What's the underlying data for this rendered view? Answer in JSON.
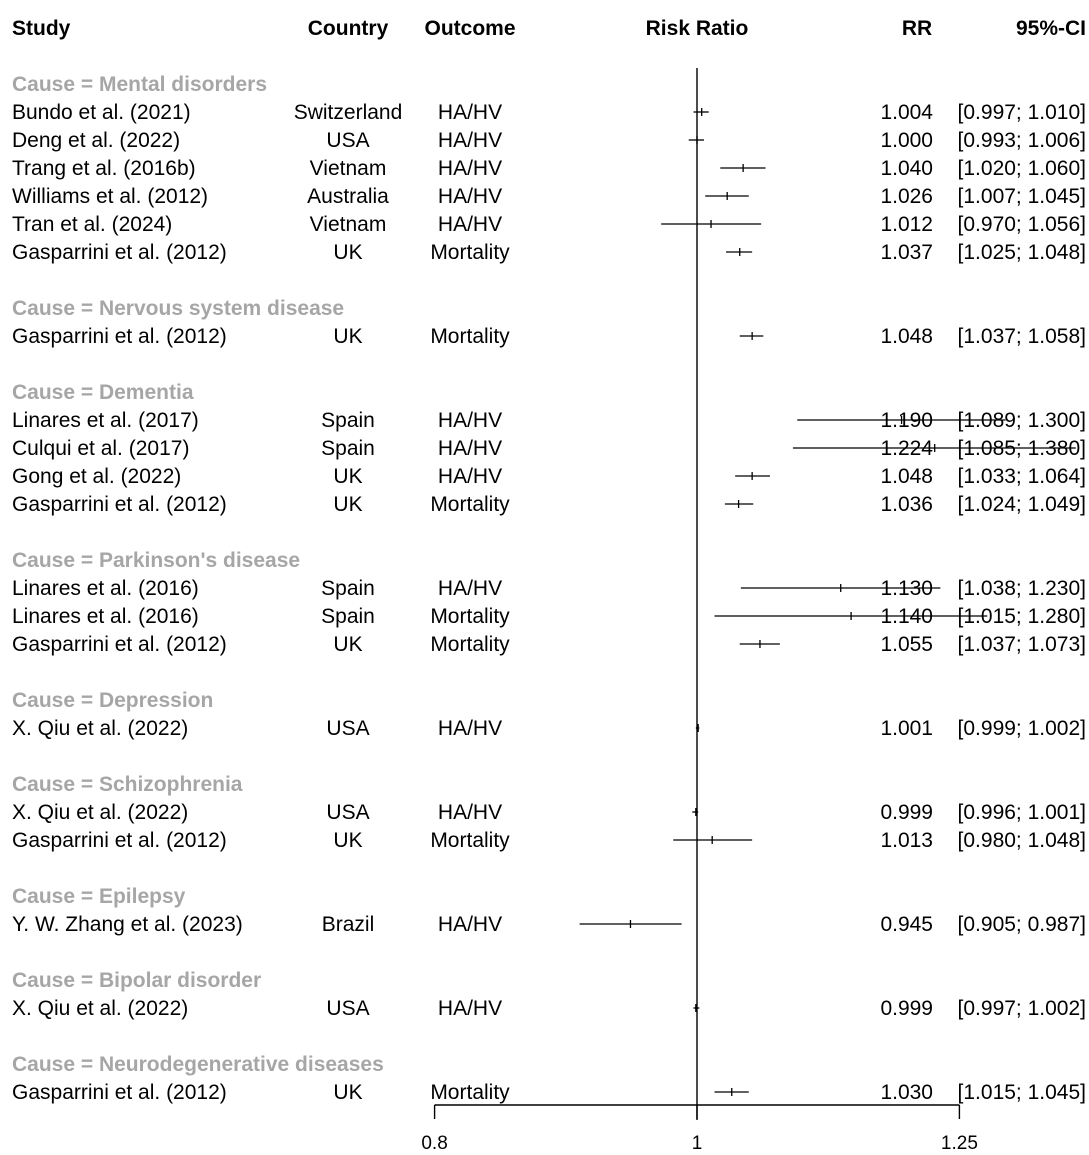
{
  "headers": {
    "study": "Study",
    "country": "Country",
    "outcome": "Outcome",
    "plot": "Risk Ratio",
    "rr": "RR",
    "ci": "95%-CI"
  },
  "chart_data": {
    "type": "forest",
    "axis": {
      "scale": "log",
      "ticks": [
        0.8,
        1,
        1.25
      ],
      "tick_labels": [
        "0.8",
        "1",
        "1.25"
      ],
      "reference_line": 1
    },
    "colors": {
      "group_label": "#a6a6a6",
      "text": "#000000"
    },
    "groups": [
      {
        "label": "Cause = Mental disorders",
        "studies": [
          {
            "study": "Bundo et al. (2021)",
            "country": "Switzerland",
            "outcome": "HA/HV",
            "rr": 1.004,
            "lo": 0.997,
            "hi": 1.01,
            "rr_text": "1.004",
            "ci_text": "[0.997; 1.010]"
          },
          {
            "study": "Deng et al. (2022)",
            "country": "USA",
            "outcome": "HA/HV",
            "rr": 1.0,
            "lo": 0.993,
            "hi": 1.006,
            "rr_text": "1.000",
            "ci_text": "[0.993; 1.006]"
          },
          {
            "study": "Trang et al. (2016b)",
            "country": "Vietnam",
            "outcome": "HA/HV",
            "rr": 1.04,
            "lo": 1.02,
            "hi": 1.06,
            "rr_text": "1.040",
            "ci_text": "[1.020; 1.060]"
          },
          {
            "study": "Williams et al. (2012)",
            "country": "Australia",
            "outcome": "HA/HV",
            "rr": 1.026,
            "lo": 1.007,
            "hi": 1.045,
            "rr_text": "1.026",
            "ci_text": "[1.007; 1.045]"
          },
          {
            "study": "Tran et al. (2024)",
            "country": "Vietnam",
            "outcome": "HA/HV",
            "rr": 1.012,
            "lo": 0.97,
            "hi": 1.056,
            "rr_text": "1.012",
            "ci_text": "[0.970; 1.056]"
          },
          {
            "study": "Gasparrini et al. (2012)",
            "country": "UK",
            "outcome": "Mortality",
            "rr": 1.037,
            "lo": 1.025,
            "hi": 1.048,
            "rr_text": "1.037",
            "ci_text": "[1.025; 1.048]"
          }
        ]
      },
      {
        "label": "Cause = Nervous system disease",
        "studies": [
          {
            "study": "Gasparrini et al. (2012)",
            "country": "UK",
            "outcome": "Mortality",
            "rr": 1.048,
            "lo": 1.037,
            "hi": 1.058,
            "rr_text": "1.048",
            "ci_text": "[1.037; 1.058]"
          }
        ]
      },
      {
        "label": "Cause = Dementia",
        "studies": [
          {
            "study": "Linares et al. (2017)",
            "country": "Spain",
            "outcome": "HA/HV",
            "rr": 1.19,
            "lo": 1.089,
            "hi": 1.3,
            "rr_text": "1.190",
            "ci_text": "[1.089; 1.300]"
          },
          {
            "study": "Culqui et al. (2017)",
            "country": "Spain",
            "outcome": "HA/HV",
            "rr": 1.224,
            "lo": 1.085,
            "hi": 1.38,
            "rr_text": "1.224",
            "ci_text": "[1.085; 1.380]"
          },
          {
            "study": "Gong et al. (2022)",
            "country": "UK",
            "outcome": "HA/HV",
            "rr": 1.048,
            "lo": 1.033,
            "hi": 1.064,
            "rr_text": "1.048",
            "ci_text": "[1.033; 1.064]"
          },
          {
            "study": "Gasparrini et al. (2012)",
            "country": "UK",
            "outcome": "Mortality",
            "rr": 1.036,
            "lo": 1.024,
            "hi": 1.049,
            "rr_text": "1.036",
            "ci_text": "[1.024; 1.049]"
          }
        ]
      },
      {
        "label": "Cause = Parkinson's disease",
        "studies": [
          {
            "study": "Linares et al. (2016)",
            "country": "Spain",
            "outcome": "HA/HV",
            "rr": 1.13,
            "lo": 1.038,
            "hi": 1.23,
            "rr_text": "1.130",
            "ci_text": "[1.038; 1.230]"
          },
          {
            "study": "Linares et al. (2016)",
            "country": "Spain",
            "outcome": "Mortality",
            "rr": 1.14,
            "lo": 1.015,
            "hi": 1.28,
            "rr_text": "1.140",
            "ci_text": "[1.015; 1.280]"
          },
          {
            "study": "Gasparrini et al. (2012)",
            "country": "UK",
            "outcome": "Mortality",
            "rr": 1.055,
            "lo": 1.037,
            "hi": 1.073,
            "rr_text": "1.055",
            "ci_text": "[1.037; 1.073]"
          }
        ]
      },
      {
        "label": "Cause = Depression",
        "studies": [
          {
            "study": "X. Qiu et al. (2022)",
            "country": "USA",
            "outcome": "HA/HV",
            "rr": 1.001,
            "lo": 0.999,
            "hi": 1.002,
            "rr_text": "1.001",
            "ci_text": "[0.999; 1.002]"
          }
        ]
      },
      {
        "label": "Cause = Schizophrenia",
        "studies": [
          {
            "study": "X. Qiu et al. (2022)",
            "country": "USA",
            "outcome": "HA/HV",
            "rr": 0.999,
            "lo": 0.996,
            "hi": 1.001,
            "rr_text": "0.999",
            "ci_text": "[0.996; 1.001]"
          },
          {
            "study": "Gasparrini et al. (2012)",
            "country": "UK",
            "outcome": "Mortality",
            "rr": 1.013,
            "lo": 0.98,
            "hi": 1.048,
            "rr_text": "1.013",
            "ci_text": "[0.980; 1.048]"
          }
        ]
      },
      {
        "label": "Cause = Epilepsy",
        "studies": [
          {
            "study": "Y. W. Zhang et al. (2023)",
            "country": "Brazil",
            "outcome": "HA/HV",
            "rr": 0.945,
            "lo": 0.905,
            "hi": 0.987,
            "rr_text": "0.945",
            "ci_text": "[0.905; 0.987]"
          }
        ]
      },
      {
        "label": "Cause = Bipolar disorder",
        "studies": [
          {
            "study": "X. Qiu et al. (2022)",
            "country": "USA",
            "outcome": "HA/HV",
            "rr": 0.999,
            "lo": 0.997,
            "hi": 1.002,
            "rr_text": "0.999",
            "ci_text": "[0.997; 1.002]"
          }
        ]
      },
      {
        "label": "Cause = Neurodegenerative diseases",
        "studies": [
          {
            "study": "Gasparrini et al. (2012)",
            "country": "UK",
            "outcome": "Mortality",
            "rr": 1.03,
            "lo": 1.015,
            "hi": 1.045,
            "rr_text": "1.030",
            "ci_text": "[1.015; 1.045]"
          }
        ]
      }
    ]
  }
}
